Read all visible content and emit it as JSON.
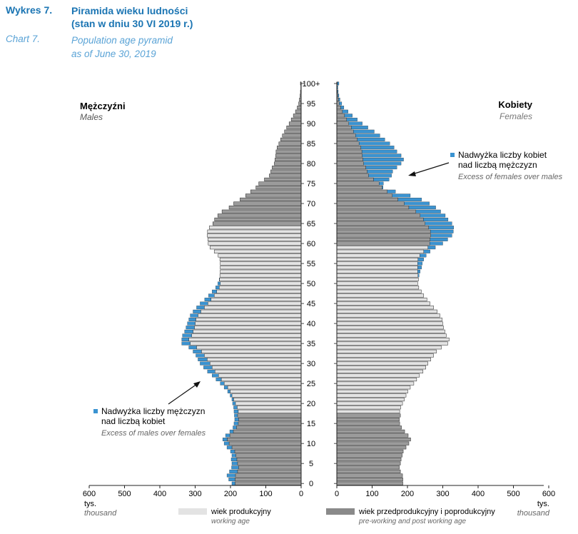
{
  "header": {
    "label_pl": "Wykres 7.",
    "label_en": "Chart 7.",
    "title_pl_line1": "Piramida wieku ludności",
    "title_pl_line2": "(stan w dniu 30 VI 2019 r.)",
    "title_en_line1": "Population age pyramid",
    "title_en_line2": "as of June 30, 2019"
  },
  "colors": {
    "working": "#e3e3e3",
    "nonworking": "#9b9b9b",
    "excess": "#3a93d1",
    "outline": "#222222"
  },
  "chart_data": {
    "type": "bar",
    "orientation": "horizontal-pyramid",
    "title": "Population age pyramid as of June 30, 2019",
    "xlim": [
      0,
      600
    ],
    "x_ticks": [
      0,
      100,
      200,
      300,
      400,
      500,
      600
    ],
    "x_unit_pl": "tys.",
    "x_unit_en": "thousand",
    "y_ticks": [
      0,
      5,
      10,
      15,
      20,
      25,
      30,
      35,
      40,
      45,
      50,
      55,
      60,
      65,
      70,
      75,
      80,
      85,
      90,
      95,
      100
    ],
    "y_tick_labels": [
      "0",
      "5",
      "10",
      "15",
      "20",
      "25",
      "30",
      "35",
      "40",
      "45",
      "50",
      "55",
      "60",
      "65",
      "70",
      "75",
      "80",
      "85",
      "90",
      "95",
      "100+"
    ],
    "working_age": {
      "start": 18,
      "male_end": 64,
      "female_end": 59
    },
    "ages": [
      0,
      1,
      2,
      3,
      4,
      5,
      6,
      7,
      8,
      9,
      10,
      11,
      12,
      13,
      14,
      15,
      16,
      17,
      18,
      19,
      20,
      21,
      22,
      23,
      24,
      25,
      26,
      27,
      28,
      29,
      30,
      31,
      32,
      33,
      34,
      35,
      36,
      37,
      38,
      39,
      40,
      41,
      42,
      43,
      44,
      45,
      46,
      47,
      48,
      49,
      50,
      51,
      52,
      53,
      54,
      55,
      56,
      57,
      58,
      59,
      60,
      61,
      62,
      63,
      64,
      65,
      66,
      67,
      68,
      69,
      70,
      71,
      72,
      73,
      74,
      75,
      76,
      77,
      78,
      79,
      80,
      81,
      82,
      83,
      84,
      85,
      86,
      87,
      88,
      89,
      90,
      91,
      92,
      93,
      94,
      95,
      96,
      97,
      98,
      99,
      100
    ],
    "males": [
      196,
      205,
      210,
      203,
      197,
      196,
      198,
      196,
      200,
      210,
      218,
      222,
      214,
      202,
      193,
      190,
      188,
      189,
      190,
      191,
      194,
      196,
      201,
      208,
      218,
      229,
      241,
      252,
      265,
      276,
      286,
      292,
      298,
      306,
      318,
      338,
      338,
      336,
      330,
      326,
      322,
      318,
      314,
      306,
      296,
      286,
      273,
      262,
      252,
      242,
      236,
      232,
      230,
      229,
      229,
      229,
      230,
      235,
      246,
      258,
      263,
      264,
      266,
      265,
      260,
      250,
      245,
      236,
      224,
      204,
      191,
      173,
      157,
      143,
      128,
      120,
      104,
      90,
      86,
      82,
      76,
      74,
      72,
      71,
      68,
      63,
      58,
      53,
      47,
      41,
      34,
      28,
      22,
      16,
      11,
      7,
      5,
      3,
      2,
      1,
      2
    ],
    "females": [
      187,
      187,
      186,
      180,
      177,
      180,
      182,
      185,
      188,
      196,
      204,
      209,
      202,
      192,
      183,
      178,
      177,
      180,
      178,
      181,
      186,
      191,
      196,
      201,
      208,
      218,
      226,
      234,
      244,
      252,
      258,
      266,
      274,
      282,
      296,
      314,
      318,
      310,
      306,
      302,
      300,
      298,
      292,
      284,
      274,
      264,
      255,
      246,
      239,
      232,
      229,
      231,
      233,
      236,
      240,
      242,
      246,
      253,
      264,
      279,
      300,
      314,
      326,
      330,
      331,
      326,
      315,
      307,
      294,
      280,
      262,
      240,
      208,
      166,
      131,
      132,
      148,
      155,
      158,
      170,
      182,
      189,
      182,
      170,
      162,
      150,
      136,
      122,
      106,
      88,
      72,
      58,
      44,
      32,
      20,
      14,
      9,
      6,
      4,
      3,
      6
    ],
    "series": [
      {
        "name": "Mężczyźni",
        "name_en": "Males"
      },
      {
        "name": "Kobiety",
        "name_en": "Females"
      }
    ],
    "annotations": {
      "males_excess_pl_1": "Nadwyżka liczby mężczyzn",
      "males_excess_pl_2": "nad liczbą kobiet",
      "males_excess_en": "Excess of males over females",
      "females_excess_pl_1": "Nadwyżka liczby kobiet",
      "females_excess_pl_2": "nad liczbą mężczyzn",
      "females_excess_en": "Excess of females over males"
    },
    "legend": [
      {
        "label": "wiek produkcyjny",
        "label_en": "working age"
      },
      {
        "label": "wiek przedprodukcyjny i poprodukcyjny",
        "label_en": "pre-working and post working age"
      }
    ]
  }
}
